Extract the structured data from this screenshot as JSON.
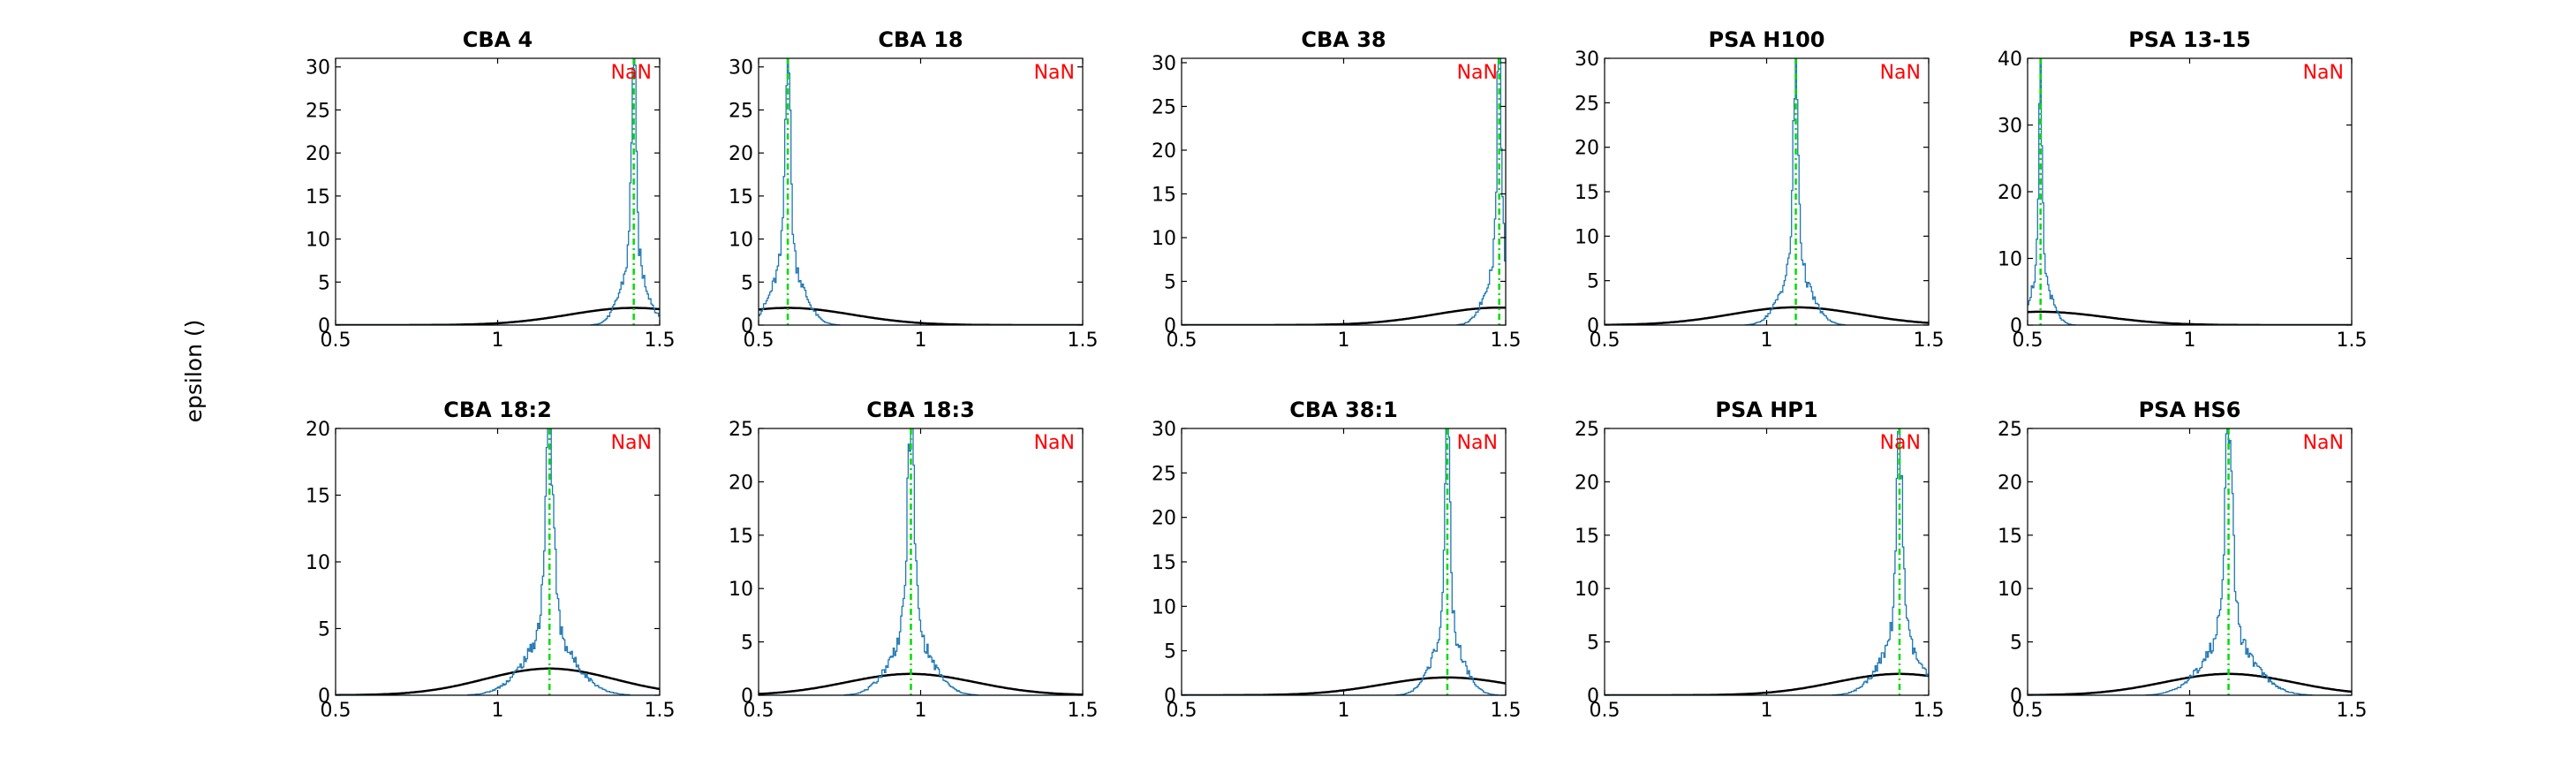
{
  "figure": {
    "ylabel": "epsilon ()"
  },
  "colors": {
    "histogram": "#1f77b4",
    "fit_curve": "#000000",
    "marker_line": "#00dd00",
    "annotation": "#ff0000",
    "axes": "#000000"
  },
  "chart_data": [
    {
      "type": "line",
      "title": "CBA 4",
      "xlim": [
        0.5,
        1.5
      ],
      "ylim": [
        0,
        31
      ],
      "xticks": [
        0.5,
        1,
        1.5
      ],
      "xtick_labels": [
        "0.5",
        "1",
        "1.5"
      ],
      "yticks": [
        0,
        5,
        10,
        15,
        20,
        25,
        30
      ],
      "ytick_labels": [
        "0",
        "5",
        "10",
        "15",
        "20",
        "25",
        "30"
      ],
      "annotation": "NaN",
      "marker_x": 1.42,
      "series": [
        {
          "name": "histogram",
          "peak_center": 1.42,
          "peak_height": 31,
          "width": 0.025
        },
        {
          "name": "fit",
          "mean": 1.42,
          "std": 0.2,
          "peak": 2
        }
      ]
    },
    {
      "type": "line",
      "title": "CBA 18",
      "xlim": [
        0.5,
        1.5
      ],
      "ylim": [
        0,
        31
      ],
      "xticks": [
        0.5,
        1,
        1.5
      ],
      "xtick_labels": [
        "0.5",
        "1",
        "1.5"
      ],
      "yticks": [
        0,
        5,
        10,
        15,
        20,
        25,
        30
      ],
      "ytick_labels": [
        "0",
        "5",
        "10",
        "15",
        "20",
        "25",
        "30"
      ],
      "annotation": "NaN",
      "marker_x": 0.59,
      "series": [
        {
          "name": "histogram",
          "peak_center": 0.59,
          "peak_height": 31,
          "width": 0.03
        },
        {
          "name": "fit",
          "mean": 0.59,
          "std": 0.2,
          "peak": 2
        }
      ]
    },
    {
      "type": "line",
      "title": "CBA 38",
      "xlim": [
        0.5,
        1.5
      ],
      "ylim": [
        0,
        30.5
      ],
      "xticks": [
        0.5,
        1,
        1.5
      ],
      "xtick_labels": [
        "0.5",
        "1",
        "1.5"
      ],
      "yticks": [
        0,
        5,
        10,
        15,
        20,
        25,
        30
      ],
      "ytick_labels": [
        "0",
        "5",
        "10",
        "15",
        "20",
        "25",
        "30"
      ],
      "annotation": "NaN",
      "marker_x": 1.48,
      "series": [
        {
          "name": "histogram",
          "peak_center": 1.48,
          "peak_height": 30.5,
          "width": 0.025
        },
        {
          "name": "fit",
          "mean": 1.48,
          "std": 0.2,
          "peak": 2
        }
      ]
    },
    {
      "type": "line",
      "title": "PSA H100",
      "xlim": [
        0.5,
        1.5
      ],
      "ylim": [
        0,
        30
      ],
      "xticks": [
        0.5,
        1,
        1.5
      ],
      "xtick_labels": [
        "0.5",
        "1",
        "1.5"
      ],
      "yticks": [
        0,
        5,
        10,
        15,
        20,
        25,
        30
      ],
      "ytick_labels": [
        "0",
        "5",
        "10",
        "15",
        "20",
        "25",
        "30"
      ],
      "annotation": "NaN",
      "marker_x": 1.09,
      "series": [
        {
          "name": "histogram",
          "peak_center": 1.09,
          "peak_height": 26.5,
          "width": 0.03
        },
        {
          "name": "fit",
          "mean": 1.09,
          "std": 0.2,
          "peak": 2
        }
      ]
    },
    {
      "type": "line",
      "title": "PSA 13-15",
      "xlim": [
        0.5,
        1.5
      ],
      "ylim": [
        0,
        40
      ],
      "xticks": [
        0.5,
        1,
        1.5
      ],
      "xtick_labels": [
        "0.5",
        "1",
        "1.5"
      ],
      "yticks": [
        0,
        10,
        20,
        30,
        40
      ],
      "ytick_labels": [
        "0",
        "10",
        "20",
        "30",
        "40"
      ],
      "annotation": "NaN",
      "marker_x": 0.54,
      "series": [
        {
          "name": "histogram",
          "peak_center": 0.54,
          "peak_height": 32,
          "width": 0.02
        },
        {
          "name": "fit",
          "mean": 0.54,
          "std": 0.2,
          "peak": 2
        }
      ]
    },
    {
      "type": "line",
      "title": "CBA 18:2",
      "xlim": [
        0.5,
        1.5
      ],
      "ylim": [
        0,
        20
      ],
      "xticks": [
        0.5,
        1,
        1.5
      ],
      "xtick_labels": [
        "0.5",
        "1",
        "1.5"
      ],
      "yticks": [
        0,
        5,
        10,
        15,
        20
      ],
      "ytick_labels": [
        "0",
        "5",
        "10",
        "15",
        "20"
      ],
      "annotation": "NaN",
      "marker_x": 1.16,
      "series": [
        {
          "name": "histogram",
          "peak_center": 1.16,
          "peak_height": 18,
          "width": 0.05
        },
        {
          "name": "fit",
          "mean": 1.16,
          "std": 0.2,
          "peak": 2
        }
      ]
    },
    {
      "type": "line",
      "title": "CBA 18:3",
      "xlim": [
        0.5,
        1.5
      ],
      "ylim": [
        0,
        25
      ],
      "xticks": [
        0.5,
        1,
        1.5
      ],
      "xtick_labels": [
        "0.5",
        "1",
        "1.5"
      ],
      "yticks": [
        0,
        5,
        10,
        15,
        20,
        25
      ],
      "ytick_labels": [
        "0",
        "5",
        "10",
        "15",
        "20",
        "25"
      ],
      "annotation": "NaN",
      "marker_x": 0.97,
      "series": [
        {
          "name": "histogram",
          "peak_center": 0.97,
          "peak_height": 24,
          "width": 0.04
        },
        {
          "name": "fit",
          "mean": 0.97,
          "std": 0.2,
          "peak": 2
        }
      ]
    },
    {
      "type": "line",
      "title": "CBA 38:1",
      "xlim": [
        0.5,
        1.5
      ],
      "ylim": [
        0,
        30
      ],
      "xticks": [
        0.5,
        1,
        1.5
      ],
      "xtick_labels": [
        "0.5",
        "1",
        "1.5"
      ],
      "yticks": [
        0,
        5,
        10,
        15,
        20,
        25,
        30
      ],
      "ytick_labels": [
        "0",
        "5",
        "10",
        "15",
        "20",
        "25",
        "30"
      ],
      "annotation": "NaN",
      "marker_x": 1.32,
      "series": [
        {
          "name": "histogram",
          "peak_center": 1.32,
          "peak_height": 29,
          "width": 0.03
        },
        {
          "name": "fit",
          "mean": 1.32,
          "std": 0.2,
          "peak": 2
        }
      ]
    },
    {
      "type": "line",
      "title": "PSA HP1",
      "xlim": [
        0.5,
        1.5
      ],
      "ylim": [
        0,
        25
      ],
      "xticks": [
        0.5,
        1,
        1.5
      ],
      "xtick_labels": [
        "0.5",
        "1",
        "1.5"
      ],
      "yticks": [
        0,
        5,
        10,
        15,
        20,
        25
      ],
      "ytick_labels": [
        "0",
        "5",
        "10",
        "15",
        "20",
        "25"
      ],
      "annotation": "NaN",
      "marker_x": 1.41,
      "series": [
        {
          "name": "histogram",
          "peak_center": 1.41,
          "peak_height": 21,
          "width": 0.04
        },
        {
          "name": "fit",
          "mean": 1.41,
          "std": 0.2,
          "peak": 2
        }
      ]
    },
    {
      "type": "line",
      "title": "PSA HS6",
      "xlim": [
        0.5,
        1.5
      ],
      "ylim": [
        0,
        25
      ],
      "xticks": [
        0.5,
        1,
        1.5
      ],
      "xtick_labels": [
        "0.5",
        "1",
        "1.5"
      ],
      "yticks": [
        0,
        5,
        10,
        15,
        20,
        25
      ],
      "ytick_labels": [
        "0",
        "5",
        "10",
        "15",
        "20",
        "25"
      ],
      "annotation": "NaN",
      "marker_x": 1.12,
      "series": [
        {
          "name": "histogram",
          "peak_center": 1.12,
          "peak_height": 22,
          "width": 0.05
        },
        {
          "name": "fit",
          "mean": 1.12,
          "std": 0.2,
          "peak": 2
        }
      ]
    }
  ]
}
